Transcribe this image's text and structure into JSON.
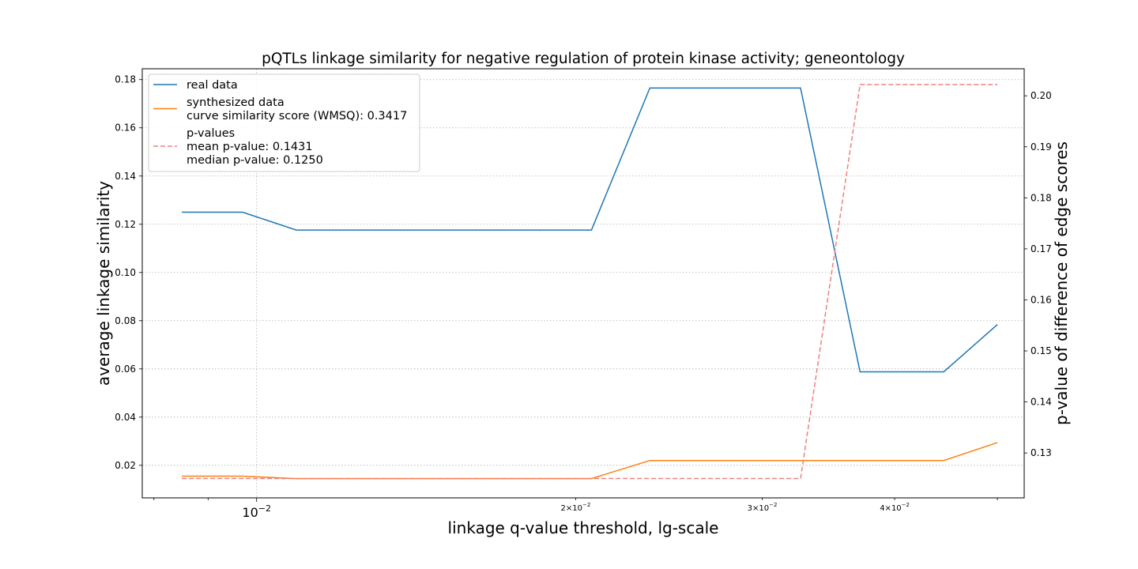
{
  "chart_data": {
    "type": "line",
    "title": "pQTLs linkage similarity for negative regulation of protein kinase activity; geneontology",
    "xlabel": "linkage q-value threshold, lg-scale",
    "ylabel": "average linkage similarity",
    "y2label": "p-value of difference of edge scores",
    "xscale": "log",
    "xlim": [
      0.0078,
      0.053
    ],
    "ylim": [
      0.0065,
      0.1845
    ],
    "y2lim": [
      0.1212,
      0.2053
    ],
    "grid": true,
    "legend_position": "top-left",
    "x_major_ticks": [
      {
        "value": 0.01,
        "base": "10",
        "exp": "−2",
        "mantissa": ""
      }
    ],
    "x_minor_labeled_ticks": [
      {
        "value": 0.02,
        "mantissa": "2×",
        "base": "10",
        "exp": "−2"
      },
      {
        "value": 0.03,
        "mantissa": "3×",
        "base": "10",
        "exp": "−2"
      },
      {
        "value": 0.04,
        "mantissa": "4×",
        "base": "10",
        "exp": "−2"
      }
    ],
    "x_minor_unlabeled_ticks": [
      0.008,
      0.009,
      0.05
    ],
    "y_ticks": [
      "0.02",
      "0.04",
      "0.06",
      "0.08",
      "0.10",
      "0.12",
      "0.14",
      "0.16",
      "0.18"
    ],
    "y2_ticks": [
      "0.13",
      "0.14",
      "0.15",
      "0.16",
      "0.17",
      "0.18",
      "0.19",
      "0.20"
    ],
    "x": [
      0.0085,
      0.0097,
      0.0109,
      0.0124,
      0.0141,
      0.016,
      0.0182,
      0.0207,
      0.0235,
      0.0267,
      0.0303,
      0.0326,
      0.0371,
      0.0421,
      0.0445,
      0.05
    ],
    "series": [
      {
        "name": "real data",
        "axis": "left",
        "color": "#1f77b4",
        "style": "solid",
        "values": [
          0.125,
          0.125,
          0.1176,
          0.1176,
          0.1176,
          0.1176,
          0.1176,
          0.1176,
          0.1765,
          0.1765,
          0.1765,
          0.1765,
          0.0588,
          0.0588,
          0.0588,
          0.0784
        ]
      },
      {
        "name": "synthesized data\ncurve similarity score (WMSQ): 0.3417",
        "axis": "left",
        "color": "#ff7f0e",
        "style": "solid",
        "values": [
          0.0155,
          0.0155,
          0.0145,
          0.0145,
          0.0145,
          0.0145,
          0.0145,
          0.0145,
          0.022,
          0.022,
          0.022,
          0.022,
          0.022,
          0.022,
          0.022,
          0.0294
        ]
      },
      {
        "name": "p-values\nmean p-value: 0.1431\nmedian p-value: 0.1250",
        "axis": "right",
        "color": "#f08080",
        "style": "dashed",
        "values": [
          0.125,
          0.125,
          0.125,
          0.125,
          0.125,
          0.125,
          0.125,
          0.125,
          0.125,
          0.125,
          0.125,
          0.125,
          0.2022,
          0.2022,
          0.2022,
          0.2022
        ]
      }
    ]
  }
}
